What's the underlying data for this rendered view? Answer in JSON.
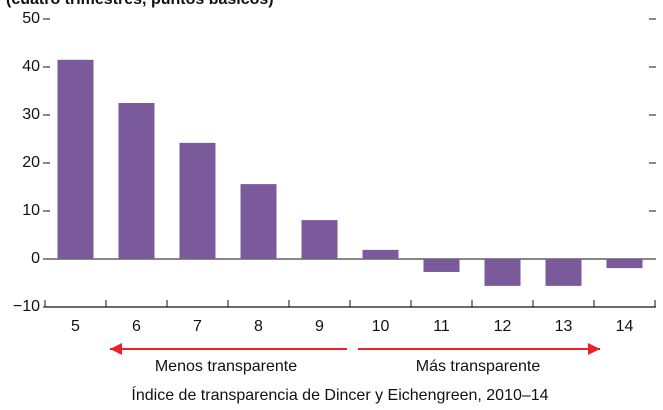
{
  "chart_data": {
    "type": "bar",
    "subtitle": "(cuatro trimestres, puntos básicos)",
    "categories": [
      "5",
      "6",
      "7",
      "8",
      "9",
      "10",
      "11",
      "12",
      "13",
      "14"
    ],
    "values": [
      41.5,
      32.5,
      24.2,
      15.6,
      8.1,
      1.9,
      -2.7,
      -5.6,
      -5.6,
      -1.9
    ],
    "color": "#7b5a9b",
    "ylim": [
      -10,
      50
    ],
    "yticks": [
      {
        "value": -10,
        "label": "−10"
      },
      0,
      10,
      20,
      30,
      40,
      50
    ],
    "xlabel": "Índice de transparencia de Dincer y Eichengreen, 2010–14",
    "annotations": [
      "Menos transparente",
      "Más transparente"
    ],
    "arrow_color": "#e8212b"
  }
}
